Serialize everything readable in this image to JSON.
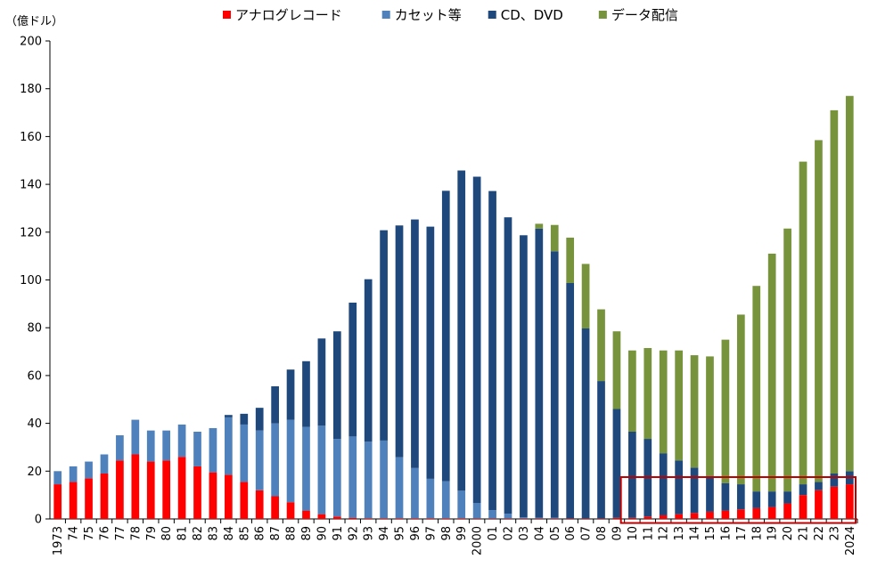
{
  "chart_data": {
    "type": "bar",
    "stacked": true,
    "unit_label": "（億ドル）",
    "ylim": [
      0,
      200
    ],
    "yticks": [
      0,
      20,
      40,
      60,
      80,
      100,
      120,
      140,
      160,
      180,
      200
    ],
    "grid": false,
    "legend_position": "top",
    "categories": [
      "1973",
      "74",
      "75",
      "76",
      "77",
      "78",
      "79",
      "80",
      "81",
      "82",
      "83",
      "84",
      "85",
      "86",
      "87",
      "88",
      "89",
      "90",
      "91",
      "92",
      "93",
      "94",
      "95",
      "96",
      "97",
      "98",
      "99",
      "2000",
      "01",
      "02",
      "03",
      "04",
      "05",
      "06",
      "07",
      "08",
      "09",
      "10",
      "11",
      "12",
      "13",
      "14",
      "15",
      "16",
      "17",
      "18",
      "19",
      "20",
      "21",
      "22",
      "23",
      "2024"
    ],
    "series": [
      {
        "name": "アナログレコード",
        "color": "#ff0000",
        "values": [
          14.5,
          15.5,
          17,
          19,
          24.5,
          27,
          24,
          24.5,
          26,
          22,
          19.5,
          18.5,
          15.5,
          12,
          9.5,
          7,
          3.5,
          2,
          1,
          0.5,
          0.3,
          0.3,
          0.3,
          0.3,
          0.3,
          0.3,
          0.3,
          0.2,
          0.2,
          0.2,
          0.2,
          0.2,
          0.2,
          0.2,
          0.2,
          0.2,
          0.5,
          0.5,
          1,
          1.5,
          2,
          2.5,
          3,
          3.5,
          4,
          4.5,
          5,
          6.5,
          10,
          12,
          13.5,
          14.5
        ]
      },
      {
        "name": "カセット等",
        "color": "#4f81bd",
        "values": [
          5.5,
          6.5,
          7,
          8,
          10.5,
          14.5,
          13,
          12.5,
          13.5,
          14.5,
          18.5,
          24,
          24,
          25,
          30.5,
          34.5,
          35,
          37,
          32.5,
          34,
          32,
          32.5,
          25.5,
          21,
          16.5,
          15.5,
          11.5,
          6.5,
          3.5,
          2,
          0.5,
          0.3,
          0.3,
          0,
          0,
          0,
          0,
          0,
          0,
          0,
          0,
          0,
          0,
          0,
          0,
          0,
          0,
          0,
          0,
          0,
          0,
          0
        ]
      },
      {
        "name": "CD、DVD",
        "color": "#1f497d",
        "values": [
          0,
          0,
          0,
          0,
          0,
          0,
          0,
          0,
          0,
          0,
          0,
          1,
          4.5,
          9.5,
          15.5,
          21,
          27.5,
          36.5,
          45,
          56,
          68,
          88,
          97,
          104,
          105.5,
          121.5,
          134,
          136.5,
          133.5,
          124,
          118,
          121,
          111.5,
          98.5,
          79.5,
          57.5,
          45.5,
          36,
          32.5,
          26,
          22.5,
          19,
          15,
          11.5,
          10.5,
          7,
          6.5,
          5,
          4.5,
          3.5,
          5.5,
          5.5
        ]
      },
      {
        "name": "データ配信",
        "color": "#77933c",
        "values": [
          0,
          0,
          0,
          0,
          0,
          0,
          0,
          0,
          0,
          0,
          0,
          0,
          0,
          0,
          0,
          0,
          0,
          0,
          0,
          0,
          0,
          0,
          0,
          0,
          0,
          0,
          0,
          0,
          0,
          0,
          0,
          2,
          11,
          19,
          27,
          30,
          32.5,
          34,
          38,
          43,
          46,
          47,
          50,
          60,
          71,
          86,
          99.5,
          110,
          135,
          143,
          152,
          157
        ]
      }
    ]
  }
}
